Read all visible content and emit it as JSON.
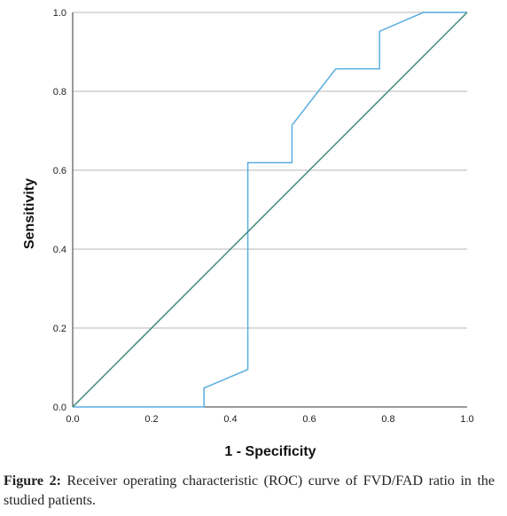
{
  "chart_data": {
    "type": "line",
    "xlabel": "1 - Specificity",
    "ylabel": "Sensitivity",
    "xlim": [
      0,
      1
    ],
    "ylim": [
      0,
      1
    ],
    "xticks": [
      "0.0",
      "0.2",
      "0.4",
      "0.6",
      "0.8",
      "1.0"
    ],
    "yticks": [
      "0.0",
      "0.2",
      "0.4",
      "0.6",
      "0.8",
      "1.0"
    ],
    "grid": "horizontal",
    "series": [
      {
        "color": "#5aaee0",
        "x": [
          0,
          0.333,
          0.333,
          0.444,
          0.444,
          0.556,
          0.556,
          0.667,
          0.778,
          0.778,
          0.889,
          1.0
        ],
        "y": [
          0,
          0,
          0.048,
          0.095,
          0.619,
          0.619,
          0.714,
          0.857,
          0.857,
          0.952,
          1.0,
          1.0
        ]
      },
      {
        "color": "#3d8a78",
        "x": [
          0,
          1
        ],
        "y": [
          0,
          1
        ]
      }
    ]
  },
  "caption": {
    "label": "Figure 2:",
    "text": " Receiver operating characteristic (ROC) curve of FVD/FAD ratio in the studied patients."
  }
}
